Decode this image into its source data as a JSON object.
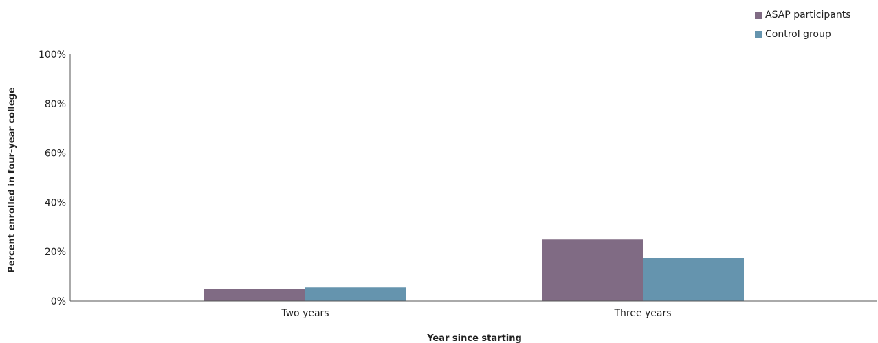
{
  "chart_data": {
    "type": "bar",
    "categories": [
      "Two years",
      "Three years"
    ],
    "series": [
      {
        "name": "ASAP participants",
        "color": "#806b84",
        "values": [
          5,
          25
        ]
      },
      {
        "name": "Control group",
        "color": "#6594ae",
        "values": [
          5.5,
          17.3
        ]
      }
    ],
    "xlabel": "Year since starting",
    "ylabel": "Percent enrolled in four-year college",
    "ylim": [
      0,
      100
    ],
    "yticks": [
      "0%",
      "20%",
      "40%",
      "60%",
      "80%",
      "100%"
    ],
    "ytick_values": [
      0,
      20,
      40,
      60,
      80,
      100
    ],
    "legend_position": "top-right",
    "grid": false
  }
}
